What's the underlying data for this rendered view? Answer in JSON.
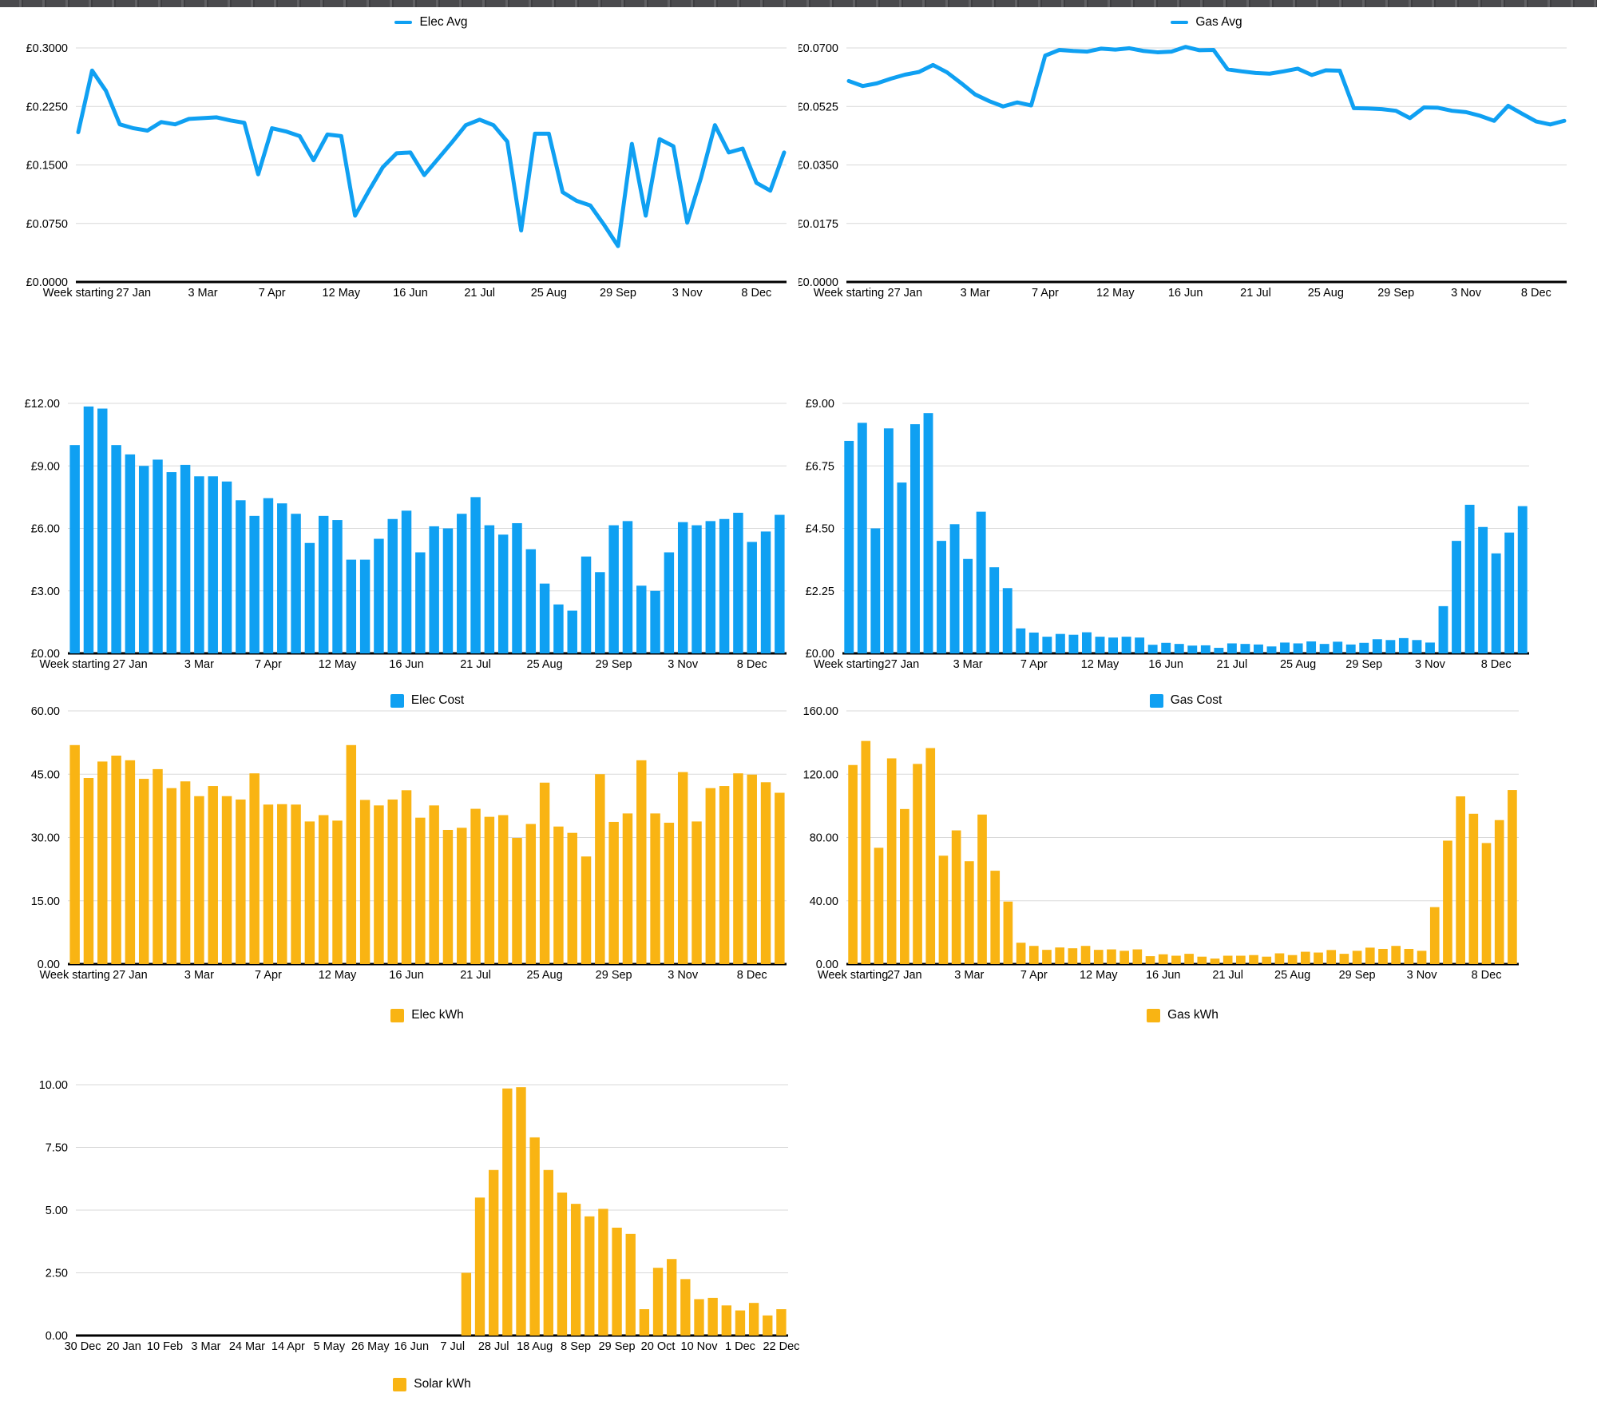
{
  "window": {
    "background": "#ffffff",
    "edge_strip_color": "#4a4a4d"
  },
  "palette": {
    "blue": "#0FA0F2",
    "yellow": "#F9B413",
    "grid": "#D9D9D9",
    "axis": "#000000",
    "text": "#000000"
  },
  "week_labels": [
    "Week starting",
    "27 Jan",
    "3 Mar",
    "7 Apr",
    "12 May",
    "16 Jun",
    "21 Jul",
    "25 Aug",
    "29 Sep",
    "3 Nov",
    "8 Dec"
  ],
  "chart_data": [
    {
      "id": "elec-avg",
      "type": "line",
      "legend": "Elec Avg",
      "color": "#0FA0F2",
      "title": "",
      "xlabel": "Week starting",
      "ylabel": "",
      "y_ticks": [
        "£0.3000",
        "£0.2250",
        "£0.1500",
        "£0.0750",
        "£0.0000"
      ],
      "ylim": [
        0,
        0.3
      ],
      "x_labels": [
        "Week starting",
        "27 Jan",
        "3 Mar",
        "7 Apr",
        "12 May",
        "16 Jun",
        "21 Jul",
        "25 Aug",
        "29 Sep",
        "3 Nov",
        "8 Dec"
      ],
      "x_label_indices": [
        0,
        4,
        9,
        14,
        19,
        24,
        29,
        34,
        39,
        44,
        49
      ],
      "values": [
        0.192,
        0.271,
        0.245,
        0.202,
        0.197,
        0.194,
        0.205,
        0.202,
        0.209,
        0.21,
        0.211,
        0.207,
        0.204,
        0.138,
        0.197,
        0.193,
        0.187,
        0.156,
        0.189,
        0.187,
        0.085,
        0.117,
        0.147,
        0.165,
        0.166,
        0.137,
        0.158,
        0.179,
        0.201,
        0.208,
        0.201,
        0.18,
        0.066,
        0.19,
        0.19,
        0.115,
        0.104,
        0.098,
        0.073,
        0.046,
        0.177,
        0.085,
        0.183,
        0.174,
        0.076,
        0.134,
        0.201,
        0.166,
        0.171,
        0.127,
        0.117,
        0.166
      ]
    },
    {
      "id": "gas-avg",
      "type": "line",
      "legend": "Gas Avg",
      "color": "#0FA0F2",
      "title": "",
      "xlabel": "Week starting",
      "ylabel": "",
      "y_ticks": [
        "£0.0700",
        "£0.0525",
        "£0.0350",
        "£0.0175",
        "£0.0000"
      ],
      "ylim": [
        0,
        0.07
      ],
      "x_labels": [
        "Week starting",
        "27 Jan",
        "3 Mar",
        "7 Apr",
        "12 May",
        "16 Jun",
        "21 Jul",
        "25 Aug",
        "29 Sep",
        "3 Nov",
        "8 Dec"
      ],
      "x_label_indices": [
        0,
        4,
        9,
        14,
        19,
        24,
        29,
        34,
        39,
        44,
        49
      ],
      "values": [
        0.0601,
        0.0586,
        0.0594,
        0.0608,
        0.062,
        0.0628,
        0.0649,
        0.0627,
        0.0595,
        0.0561,
        0.0541,
        0.0525,
        0.0537,
        0.0528,
        0.0677,
        0.0694,
        0.0691,
        0.0689,
        0.0698,
        0.0695,
        0.0699,
        0.0691,
        0.0687,
        0.0689,
        0.0703,
        0.0693,
        0.0694,
        0.0636,
        0.063,
        0.0625,
        0.0623,
        0.063,
        0.0638,
        0.0619,
        0.0633,
        0.0632,
        0.052,
        0.0519,
        0.0517,
        0.0512,
        0.049,
        0.0522,
        0.0521,
        0.0512,
        0.0508,
        0.0497,
        0.0482,
        0.0527,
        0.0503,
        0.048,
        0.0471,
        0.0482
      ]
    },
    {
      "id": "elec-cost",
      "type": "bar",
      "legend": "Elec Cost",
      "color": "#0FA0F2",
      "title": "",
      "xlabel": "Week starting",
      "ylabel": "",
      "y_ticks": [
        "£12.00",
        "£9.00",
        "£6.00",
        "£3.00",
        "£0.00"
      ],
      "ylim": [
        0,
        12
      ],
      "x_labels": [
        "Week starting",
        "27 Jan",
        "3 Mar",
        "7 Apr",
        "12 May",
        "16 Jun",
        "21 Jul",
        "25 Aug",
        "29 Sep",
        "3 Nov",
        "8 Dec"
      ],
      "x_label_indices": [
        0,
        4,
        9,
        14,
        19,
        24,
        29,
        34,
        39,
        44,
        49
      ],
      "values": [
        10.0,
        11.85,
        11.75,
        10.0,
        9.55,
        9.0,
        9.3,
        8.7,
        9.05,
        8.5,
        8.5,
        8.25,
        7.35,
        6.6,
        7.45,
        7.2,
        6.7,
        5.3,
        6.6,
        6.4,
        4.5,
        4.5,
        5.5,
        6.45,
        6.85,
        4.85,
        6.1,
        6.0,
        6.7,
        7.5,
        6.15,
        5.7,
        6.25,
        5.0,
        3.35,
        2.35,
        2.05,
        4.65,
        3.9,
        6.15,
        6.35,
        3.25,
        3.0,
        4.85,
        6.3,
        6.15,
        6.35,
        6.45,
        6.75,
        5.35,
        5.85,
        6.65
      ]
    },
    {
      "id": "gas-cost",
      "type": "bar",
      "legend": "Gas Cost",
      "color": "#0FA0F2",
      "title": "",
      "xlabel": "Week starting",
      "ylabel": "",
      "y_ticks": [
        "£9.00",
        "£6.75",
        "£4.50",
        "£2.25",
        "£0.00"
      ],
      "ylim": [
        0,
        9
      ],
      "x_labels": [
        "Week starting",
        "27 Jan",
        "3 Mar",
        "7 Apr",
        "12 May",
        "16 Jun",
        "21 Jul",
        "25 Aug",
        "29 Sep",
        "3 Nov",
        "8 Dec"
      ],
      "x_label_indices": [
        0,
        4,
        9,
        14,
        19,
        24,
        29,
        34,
        39,
        44,
        49
      ],
      "values": [
        7.65,
        8.3,
        4.5,
        8.1,
        6.15,
        8.25,
        8.65,
        4.05,
        4.65,
        3.4,
        5.1,
        3.1,
        2.35,
        0.9,
        0.75,
        0.6,
        0.7,
        0.67,
        0.76,
        0.6,
        0.57,
        0.6,
        0.57,
        0.31,
        0.38,
        0.34,
        0.28,
        0.29,
        0.2,
        0.36,
        0.34,
        0.32,
        0.25,
        0.39,
        0.36,
        0.43,
        0.34,
        0.42,
        0.32,
        0.38,
        0.51,
        0.48,
        0.55,
        0.48,
        0.39,
        1.7,
        4.05,
        5.35,
        4.55,
        3.6,
        4.35,
        5.3
      ]
    },
    {
      "id": "elec-kwh",
      "type": "bar",
      "legend": "Elec kWh",
      "color": "#F9B413",
      "title": "",
      "xlabel": "Week starting",
      "ylabel": "",
      "y_ticks": [
        "60.00",
        "45.00",
        "30.00",
        "15.00",
        "0.00"
      ],
      "ylim": [
        0,
        60
      ],
      "x_labels": [
        "Week starting",
        "27 Jan",
        "3 Mar",
        "7 Apr",
        "12 May",
        "16 Jun",
        "21 Jul",
        "25 Aug",
        "29 Sep",
        "3 Nov",
        "8 Dec"
      ],
      "x_label_indices": [
        0,
        4,
        9,
        14,
        19,
        24,
        29,
        34,
        39,
        44,
        49
      ],
      "values": [
        51.9,
        44.1,
        48.0,
        49.4,
        48.3,
        43.9,
        46.2,
        41.7,
        43.3,
        39.8,
        42.2,
        39.8,
        39.0,
        45.2,
        37.8,
        37.9,
        37.8,
        33.8,
        35.3,
        34.0,
        51.9,
        38.9,
        37.6,
        39.0,
        41.2,
        34.7,
        37.6,
        31.8,
        32.3,
        36.8,
        34.9,
        35.3,
        29.9,
        33.2,
        43.0,
        32.6,
        31.1,
        25.5,
        45.0,
        33.7,
        35.7,
        48.3,
        35.7,
        33.5,
        45.5,
        33.8,
        41.7,
        42.2,
        45.2,
        44.9,
        43.1,
        40.6
      ]
    },
    {
      "id": "gas-kwh",
      "type": "bar",
      "legend": "Gas kWh",
      "color": "#F9B413",
      "title": "",
      "xlabel": "Week starting",
      "ylabel": "",
      "y_ticks": [
        "160.00",
        "120.00",
        "80.00",
        "40.00",
        "0.00"
      ],
      "ylim": [
        0,
        160
      ],
      "x_labels": [
        "Week starting",
        "27 Jan",
        "3 Mar",
        "7 Apr",
        "12 May",
        "16 Jun",
        "21 Jul",
        "25 Aug",
        "29 Sep",
        "3 Nov",
        "8 Dec"
      ],
      "x_label_indices": [
        0,
        4,
        9,
        14,
        19,
        24,
        29,
        34,
        39,
        44,
        49
      ],
      "values": [
        125.8,
        141.0,
        73.5,
        130.0,
        98.0,
        126.5,
        136.5,
        68.5,
        84.5,
        65.0,
        94.5,
        59.0,
        39.5,
        13.5,
        11.5,
        9.0,
        10.5,
        10.0,
        11.5,
        9.0,
        9.3,
        8.4,
        9.3,
        5.0,
        6.2,
        5.3,
        6.5,
        4.7,
        3.5,
        5.3,
        5.3,
        5.7,
        4.7,
        6.8,
        5.7,
        7.8,
        7.3,
        8.9,
        6.5,
        8.4,
        10.4,
        9.6,
        11.5,
        9.6,
        8.4,
        36.0,
        78.0,
        106.0,
        95.0,
        76.5,
        91.0,
        110.0
      ]
    },
    {
      "id": "solar-kwh",
      "type": "bar",
      "legend": "Solar kWh",
      "color": "#F9B413",
      "title": "",
      "xlabel": "",
      "ylabel": "",
      "y_ticks": [
        "10.00",
        "7.50",
        "5.00",
        "2.50",
        "0.00"
      ],
      "ylim": [
        0,
        10
      ],
      "x_labels": [
        "30 Dec",
        "20 Jan",
        "10 Feb",
        "3 Mar",
        "24 Mar",
        "14 Apr",
        "5 May",
        "26 May",
        "16 Jun",
        "7 Jul",
        "28 Jul",
        "18 Aug",
        "8 Sep",
        "29 Sep",
        "20 Oct",
        "10 Nov",
        "1 Dec",
        "22 Dec"
      ],
      "x_label_indices": [
        0,
        3,
        6,
        9,
        12,
        15,
        18,
        21,
        24,
        27,
        30,
        33,
        36,
        39,
        42,
        45,
        48,
        51
      ],
      "values": [
        0,
        0,
        0,
        0,
        0,
        0,
        0,
        0,
        0,
        0,
        0,
        0,
        0,
        0,
        0,
        0,
        0,
        0,
        0,
        0,
        0,
        0,
        0,
        0,
        0,
        0,
        0,
        0,
        2.5,
        5.5,
        6.6,
        9.85,
        9.9,
        7.9,
        6.6,
        5.7,
        5.25,
        4.75,
        5.05,
        4.3,
        4.05,
        1.05,
        2.7,
        3.05,
        2.25,
        1.45,
        1.5,
        1.2,
        1.0,
        1.3,
        0.8,
        1.05
      ]
    }
  ]
}
